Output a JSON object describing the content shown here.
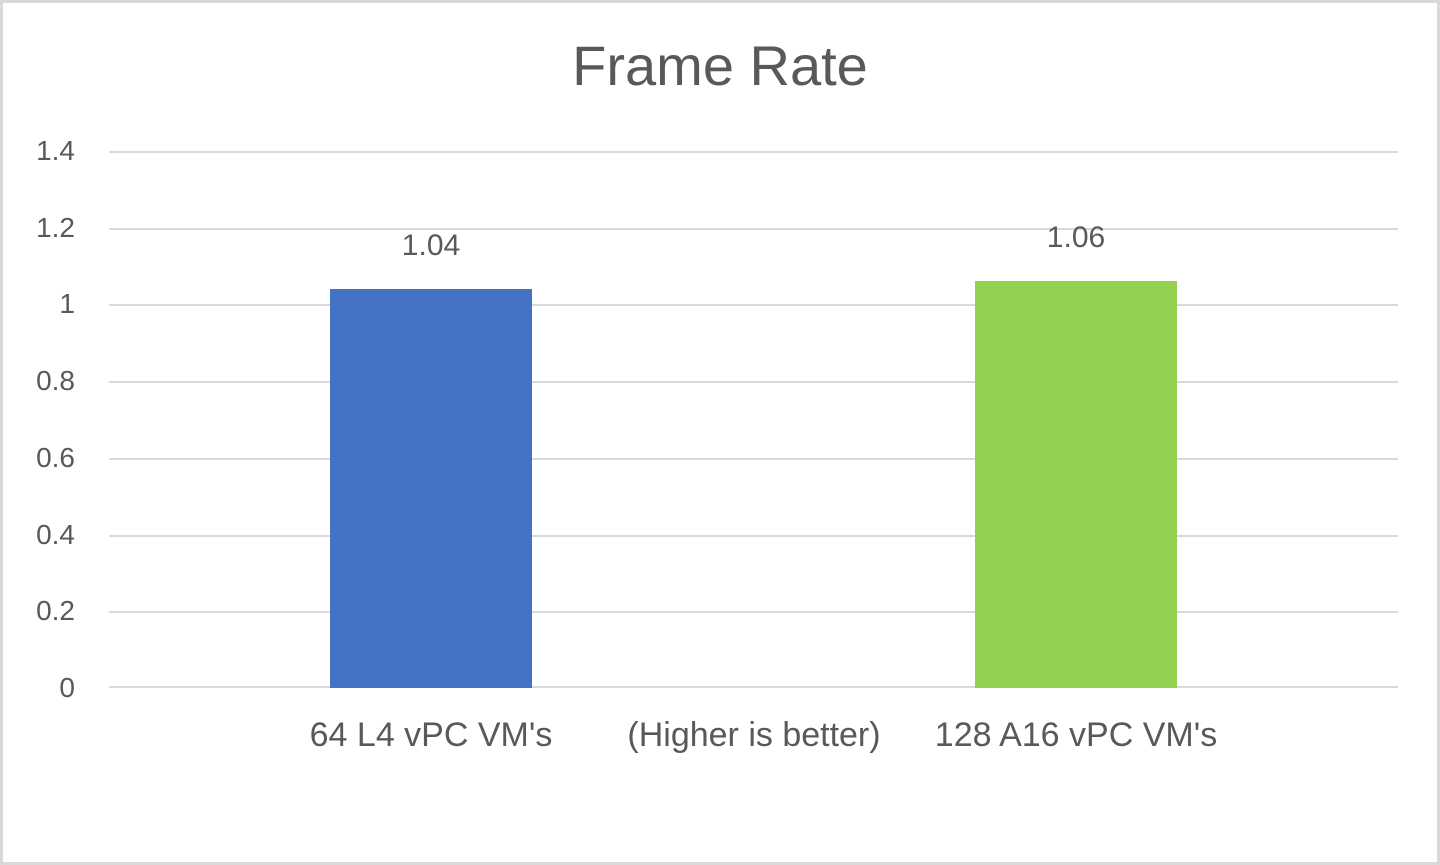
{
  "window": {
    "background": "#ffffff",
    "border_color": "#d9d9d9"
  },
  "colors": {
    "text": "#595959",
    "gridline": "#d9d9d9",
    "axis_line": "#d9d9d9"
  },
  "chart_data": {
    "type": "bar",
    "title": "Frame Rate",
    "categories": [
      "64 L4 vPC VM's",
      "(Higher is better)",
      "128 A16 vPC VM's"
    ],
    "values": [
      1.04,
      null,
      1.06
    ],
    "data_labels": [
      "1.04",
      "",
      "1.06"
    ],
    "bar_colors": [
      "#4472C4",
      "",
      "#92D050"
    ],
    "xlabel": "",
    "ylabel": "",
    "ylim": [
      0,
      1.4
    ],
    "ytick_step": 0.2,
    "ytick_labels": [
      "0",
      "0.2",
      "0.4",
      "0.6",
      "0.8",
      "1",
      "1.2",
      "1.4"
    ],
    "grid": true,
    "legend": false
  }
}
